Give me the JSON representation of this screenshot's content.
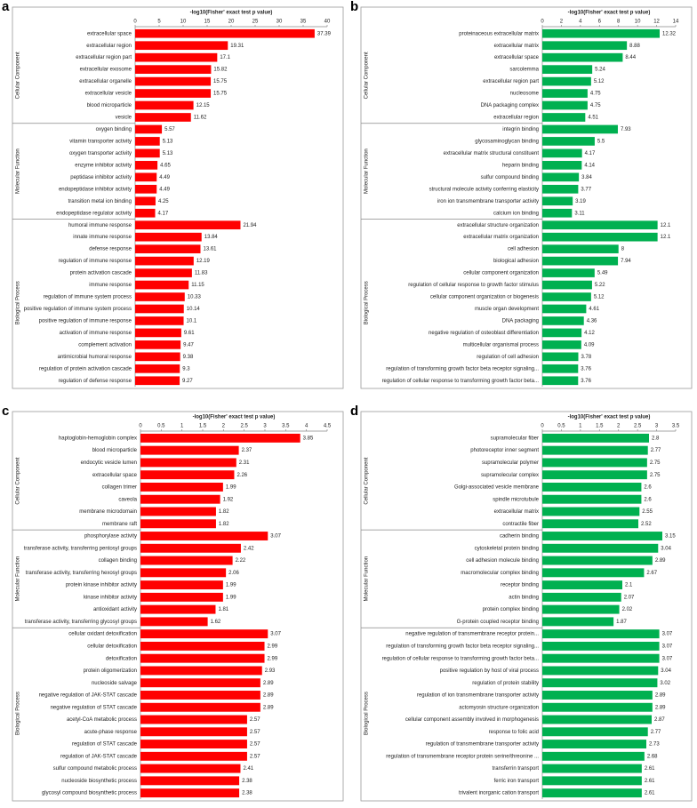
{
  "chart_data": [
    {
      "type": "bar",
      "label": "a",
      "title": "-log10(Fisher' exact test p value)",
      "color": "#ff0000",
      "xlim": [
        0,
        40
      ],
      "xticks": [
        0,
        5,
        10,
        15,
        20,
        25,
        30,
        35,
        40
      ],
      "groups": [
        {
          "name": "Cellular Component",
          "categories": [
            "extracellular space",
            "extracellular region",
            "extracellular region part",
            "extracellular exosome",
            "extracellular organelle",
            "extracellular vesicle",
            "blood microparticle",
            "vesicle"
          ],
          "values": [
            37.39,
            19.31,
            17.1,
            15.82,
            15.75,
            15.75,
            12.15,
            11.62
          ]
        },
        {
          "name": "Molecular Function",
          "categories": [
            "oxygen binding",
            "vitamin transporter activity",
            "oxygen transporter activity",
            "enzyme inhibitor activity",
            "peptidase inhibitor activity",
            "endopeptidase inhibitor activity",
            "transition metal ion binding",
            "endopeptidase regulator activity"
          ],
          "values": [
            5.57,
            5.13,
            5.13,
            4.65,
            4.49,
            4.49,
            4.25,
            4.17
          ]
        },
        {
          "name": "Biological Process",
          "categories": [
            "humoral immune response",
            "innate immune response",
            "defense response",
            "regulation of immune response",
            "protein activation cascade",
            "immune response",
            "regulation of immune system process",
            "positive regulation of immune system process",
            "positive regulation of immune response",
            "activation of immune response",
            "complement activation",
            "antimicrobial humoral response",
            "regulation of protein activation cascade",
            "regulation of defense response"
          ],
          "values": [
            21.94,
            13.84,
            13.61,
            12.19,
            11.83,
            11.15,
            10.33,
            10.14,
            10.1,
            9.61,
            9.47,
            9.38,
            9.3,
            9.27
          ]
        }
      ]
    },
    {
      "type": "bar",
      "label": "b",
      "title": "-log10(Fisher' exact test p value)",
      "color": "#00b050",
      "xlim": [
        0,
        14
      ],
      "xticks": [
        0,
        2,
        4,
        6,
        8,
        10,
        12,
        14
      ],
      "groups": [
        {
          "name": "Cellular Component",
          "categories": [
            "proteinaceous extracellular matrix",
            "extracellular matrix",
            "extracellular space",
            "sarcolemma",
            "extracellular region part",
            "nucleosome",
            "DNA packaging complex",
            "extracellular region"
          ],
          "values": [
            12.32,
            8.88,
            8.44,
            5.24,
            5.12,
            4.75,
            4.75,
            4.51
          ]
        },
        {
          "name": "Molecular Function",
          "categories": [
            "integrin binding",
            "glycosaminoglycan binding",
            "extracellular matrix structural constituent",
            "heparin binding",
            "sulfur compound binding",
            "structural molecule activity conferring elasticity",
            "iron ion transmembrane transporter activity",
            "calcium ion binding"
          ],
          "values": [
            7.93,
            5.5,
            4.17,
            4.14,
            3.84,
            3.77,
            3.19,
            3.11
          ]
        },
        {
          "name": "Biological Process",
          "categories": [
            "extracellular structure organization",
            "extracellular matrix organization",
            "cell adhesion",
            "biological adhesion",
            "cellular component organization",
            "regulation of cellular response to growth factor stimulus",
            "cellular component organization or biogenesis",
            "muscle organ development",
            "DNA packaging",
            "negative regulation of osteoblast differentiation",
            "multicellular organismal process",
            "regulation of cell adhesion",
            "regulation of transforming growth factor beta receptor signaling...",
            "regulation of cellular response to transforming growth factor beta..."
          ],
          "values": [
            12.1,
            12.1,
            8,
            7.94,
            5.49,
            5.22,
            5.12,
            4.61,
            4.36,
            4.12,
            4.09,
            3.78,
            3.76,
            3.76
          ]
        }
      ]
    },
    {
      "type": "bar",
      "label": "c",
      "title": "-log10(Fisher' exact test p value)",
      "color": "#ff0000",
      "xlim": [
        0,
        4.5
      ],
      "xticks": [
        0,
        0.5,
        1,
        1.5,
        2,
        2.5,
        3,
        3.5,
        4,
        4.5
      ],
      "groups": [
        {
          "name": "Cellular Component",
          "categories": [
            "haptoglobin-hemoglobin complex",
            "blood microparticle",
            "endocytic vesicle lumen",
            "extracellular space",
            "collagen trimer",
            "caveola",
            "membrane microdomain",
            "membrane raft"
          ],
          "values": [
            3.85,
            2.37,
            2.31,
            2.26,
            1.99,
            1.92,
            1.82,
            1.82
          ]
        },
        {
          "name": "Molecular Function",
          "categories": [
            "phosphorylase activity",
            "transferase activity, transferring pentosyl groups",
            "collagen binding",
            "transferase activity, transferring hexosyl groups",
            "protein kinase inhibitor activity",
            "kinase inhibitor activity",
            "antioxidant activity",
            "transferase activity, transferring glycosyl groups"
          ],
          "values": [
            3.07,
            2.42,
            2.22,
            2.06,
            1.99,
            1.99,
            1.81,
            1.62
          ]
        },
        {
          "name": "Biological Process",
          "categories": [
            "cellular oxidant detoxification",
            "cellular detoxification",
            "detoxification",
            "protein oligomerization",
            "nucleoside salvage",
            "negative regulation of JAK-STAT cascade",
            "negative regulation of STAT cascade",
            "acetyl-CoA metabolic process",
            "acute-phase response",
            "regulation of STAT cascade",
            "regulation of JAK-STAT cascade",
            "sulfur compound metabolic process",
            "nucleoside biosynthetic process",
            "glycosyl compound biosynthetic process"
          ],
          "values": [
            3.07,
            2.99,
            2.99,
            2.93,
            2.89,
            2.89,
            2.89,
            2.57,
            2.57,
            2.57,
            2.57,
            2.41,
            2.38,
            2.38
          ]
        }
      ]
    },
    {
      "type": "bar",
      "label": "d",
      "title": "-log10(Fisher' exact test p value)",
      "color": "#00b050",
      "xlim": [
        0,
        3.5
      ],
      "xticks": [
        0,
        0.5,
        1,
        1.5,
        2,
        2.5,
        3,
        3.5
      ],
      "groups": [
        {
          "name": "Cellular Component",
          "categories": [
            "supramolecular fiber",
            "photoreceptor inner segment",
            "supramolecular polymer",
            "supramolecular complex",
            "Golgi-associated vesicle membrane",
            "spindle microtubule",
            "extracellular matrix",
            "contractile fiber"
          ],
          "values": [
            2.8,
            2.77,
            2.75,
            2.75,
            2.6,
            2.6,
            2.55,
            2.52
          ]
        },
        {
          "name": "Molecular Function",
          "categories": [
            "cadherin binding",
            "cytoskeletal protein binding",
            "cell adhesion molecule binding",
            "macromolecular complex binding",
            "receptor binding",
            "actin binding",
            "protein complex binding",
            "G-protein coupled receptor binding"
          ],
          "values": [
            3.15,
            3.04,
            2.89,
            2.67,
            2.1,
            2.07,
            2.02,
            1.87
          ]
        },
        {
          "name": "Biological Process",
          "categories": [
            "negative regulation of transmembrane receptor protein...",
            "regulation of transforming growth factor beta receptor signaling...",
            "regulation of cellular response to transforming growth factor beta...",
            "positive regulation by host of viral process",
            "regulation of protein stability",
            "regulation of ion transmembrane transporter activity",
            "actomyosin structure organization",
            "cellular component assembly involved in morphogenesis",
            "response to folic acid",
            "regulation of transmembrane transporter activity",
            "regulation of transmembrane receptor protein serine/threonine ...",
            "transferrin transport",
            "ferric iron transport",
            "trivalent inorganic cation transport"
          ],
          "values": [
            3.07,
            3.07,
            3.07,
            3.04,
            3.02,
            2.89,
            2.89,
            2.87,
            2.77,
            2.73,
            2.68,
            2.61,
            2.61,
            2.61
          ]
        }
      ]
    }
  ]
}
